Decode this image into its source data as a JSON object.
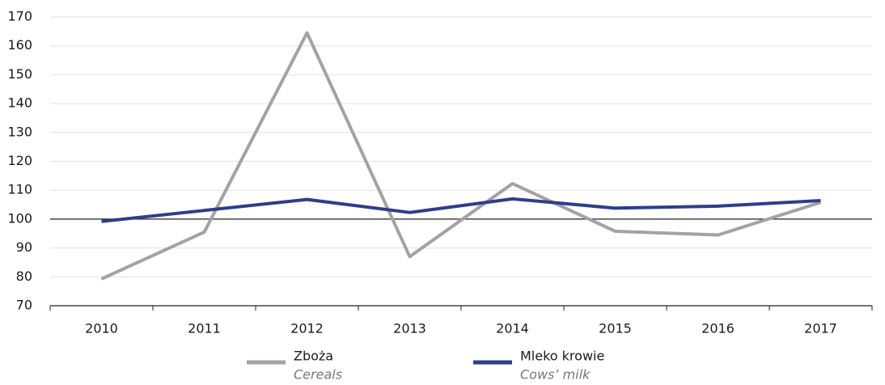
{
  "chart_data": {
    "type": "line",
    "categories": [
      "2010",
      "2011",
      "2012",
      "2013",
      "2014",
      "2015",
      "2016",
      "2017"
    ],
    "series": [
      {
        "name": "Zboża",
        "name_en": "Cereals",
        "color": "#a3a3a3",
        "values": [
          79.3,
          95.5,
          164.5,
          87,
          112.3,
          95.8,
          94.5,
          105.8
        ]
      },
      {
        "name": "Mleko krowie",
        "name_en": "Cows’ milk",
        "color": "#2e3d8c",
        "values": [
          99.2,
          103,
          106.8,
          102.3,
          107,
          103.8,
          104.5,
          106.4
        ]
      }
    ],
    "ylim": [
      70,
      170
    ],
    "yticks": [
      70,
      80,
      90,
      100,
      110,
      120,
      130,
      140,
      150,
      160,
      170
    ],
    "grid": true,
    "reference_line": 100,
    "legend": "bottom"
  }
}
